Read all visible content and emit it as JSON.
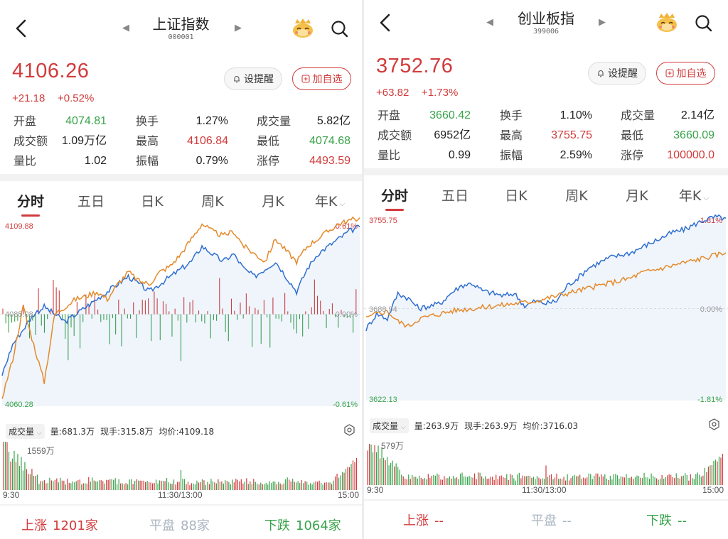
{
  "colors": {
    "up": "#d23b3b",
    "down": "#38a34a",
    "blue": "#2f6fd0",
    "orange": "#e58a2a",
    "flat_text": "#aab4c0"
  },
  "icons": [
    "back-arrow-icon",
    "prev-triangle-icon",
    "next-triangle-icon",
    "mascot-icon",
    "search-icon",
    "bell-icon",
    "plus-box-icon",
    "settings-icon",
    "chevron-down-icon"
  ],
  "panels": [
    {
      "title": "上证指数",
      "code": "000001",
      "price": "4106.26",
      "change": "+21.18",
      "change_pct": "+0.52%",
      "alert_label": "设提醒",
      "watch_label": "加自选",
      "stats": [
        [
          {
            "label": "开盘",
            "value": "4074.81",
            "color": "down"
          },
          {
            "label": "换手",
            "value": "1.27%",
            "color": "neutral"
          },
          {
            "label": "成交量",
            "value": "5.82亿",
            "color": "neutral"
          }
        ],
        [
          {
            "label": "成交额",
            "value": "1.09万亿",
            "color": "neutral"
          },
          {
            "label": "最高",
            "value": "4106.84",
            "color": "up"
          },
          {
            "label": "最低",
            "value": "4074.68",
            "color": "down"
          }
        ],
        [
          {
            "label": "量比",
            "value": "1.02",
            "color": "neutral"
          },
          {
            "label": "振幅",
            "value": "0.79%",
            "color": "neutral"
          },
          {
            "label": "涨停",
            "value": "4493.59",
            "color": "up"
          }
        ]
      ],
      "tabs": [
        "分时",
        "五日",
        "日K",
        "周K",
        "月K",
        "年K"
      ],
      "chart_labels": {
        "high": "4109.88",
        "mid": "4085.08",
        "low": "4060.28",
        "pct_high": "0.61%",
        "pct_mid": "0.00%",
        "pct_low": "-0.61%"
      },
      "volume_bar": {
        "selector": "成交量",
        "vol": "量:681.3万",
        "now": "现手:315.8万",
        "avg": "均价:4109.18"
      },
      "volume_chart": {
        "max_label": "1559万",
        "t_start": "9:30",
        "t_mid": "11:30/13:00",
        "t_end": "15:00"
      },
      "breadth": [
        {
          "label": "上涨",
          "value": "1201家",
          "color": "up"
        },
        {
          "label": "平盘",
          "value": "88家",
          "color": "flat"
        },
        {
          "label": "下跌",
          "value": "1064家",
          "color": "down"
        }
      ]
    },
    {
      "title": "创业板指",
      "code": "399006",
      "price": "3752.76",
      "change": "+63.82",
      "change_pct": "+1.73%",
      "alert_label": "设提醒",
      "watch_label": "加自选",
      "stats": [
        [
          {
            "label": "开盘",
            "value": "3660.42",
            "color": "down"
          },
          {
            "label": "换手",
            "value": "1.10%",
            "color": "neutral"
          },
          {
            "label": "成交量",
            "value": "2.14亿",
            "color": "neutral"
          }
        ],
        [
          {
            "label": "成交额",
            "value": "6952亿",
            "color": "neutral"
          },
          {
            "label": "最高",
            "value": "3755.75",
            "color": "up"
          },
          {
            "label": "最低",
            "value": "3660.09",
            "color": "down"
          }
        ],
        [
          {
            "label": "量比",
            "value": "0.99",
            "color": "neutral"
          },
          {
            "label": "振幅",
            "value": "2.59%",
            "color": "neutral"
          },
          {
            "label": "涨停",
            "value": "100000.0",
            "color": "up"
          }
        ]
      ],
      "tabs": [
        "分时",
        "五日",
        "日K",
        "周K",
        "月K",
        "年K"
      ],
      "chart_labels": {
        "high": "3755.75",
        "mid": "3688.94",
        "low": "3622.13",
        "pct_high": "1.81%",
        "pct_mid": "0.00%",
        "pct_low": "-1.81%"
      },
      "volume_bar": {
        "selector": "成交量",
        "vol": "量:263.9万",
        "now": "现手:263.9万",
        "avg": "均价:3716.03"
      },
      "volume_chart": {
        "max_label": "579万",
        "t_start": "9:30",
        "t_mid": "11:30/13:00",
        "t_end": "15:00"
      },
      "breadth": [
        {
          "label": "上涨",
          "value": "--",
          "color": "up"
        },
        {
          "label": "平盘",
          "value": "--",
          "color": "flat"
        },
        {
          "label": "下跌",
          "value": "--",
          "color": "down"
        }
      ]
    }
  ],
  "chart_data": [
    {
      "type": "line",
      "x_range": [
        "9:30",
        "15:00"
      ],
      "ylim": [
        4060.28,
        4109.88
      ],
      "series": [
        {
          "key": "blue",
          "pct": [
            -0.4,
            -0.2,
            -0.1,
            0.0,
            0.05,
            0.0,
            -0.05,
            0.0,
            0.05,
            0.1,
            0.15,
            0.2,
            0.25,
            0.2,
            0.15,
            0.2,
            0.25,
            0.3,
            0.35,
            0.45,
            0.4,
            0.35,
            0.4,
            0.3,
            0.25,
            0.3,
            0.35,
            0.25,
            0.15,
            0.3,
            0.4,
            0.45,
            0.5,
            0.55,
            0.58
          ]
        },
        {
          "key": "orange",
          "pct": [
            -0.55,
            -0.3,
            0.05,
            -0.2,
            -0.45,
            0.0,
            0.05,
            0.1,
            0.12,
            0.15,
            0.1,
            0.2,
            0.28,
            0.22,
            0.2,
            0.28,
            0.32,
            0.4,
            0.5,
            0.6,
            0.55,
            0.52,
            0.55,
            0.45,
            0.4,
            0.35,
            0.5,
            0.42,
            0.35,
            0.45,
            0.5,
            0.55,
            0.6,
            0.62,
            0.64
          ]
        }
      ]
    },
    {
      "type": "line",
      "x_range": [
        "9:30",
        "15:00"
      ],
      "ylim": [
        3622.13,
        3755.75
      ],
      "series": [
        {
          "key": "blue",
          "pct": [
            -0.4,
            -0.1,
            -0.2,
            0.3,
            0.2,
            0.0,
            0.05,
            0.1,
            0.3,
            0.45,
            0.5,
            0.35,
            0.3,
            0.25,
            0.3,
            0.05,
            0.15,
            0.1,
            0.15,
            0.45,
            0.6,
            0.8,
            0.9,
            1.0,
            1.05,
            1.1,
            1.2,
            1.3,
            1.4,
            1.5,
            1.55,
            1.65,
            1.75,
            1.8,
            1.78
          ]
        },
        {
          "key": "orange",
          "pct": [
            -0.2,
            -0.1,
            -0.05,
            -0.25,
            -0.35,
            -0.2,
            -0.15,
            -0.1,
            -0.05,
            -0.02,
            0.0,
            0.02,
            0.05,
            0.07,
            0.1,
            0.12,
            0.15,
            0.2,
            0.25,
            0.3,
            0.35,
            0.4,
            0.45,
            0.5,
            0.55,
            0.6,
            0.7,
            0.75,
            0.8,
            0.85,
            0.9,
            0.95,
            1.0,
            1.05,
            1.1
          ]
        }
      ]
    }
  ]
}
